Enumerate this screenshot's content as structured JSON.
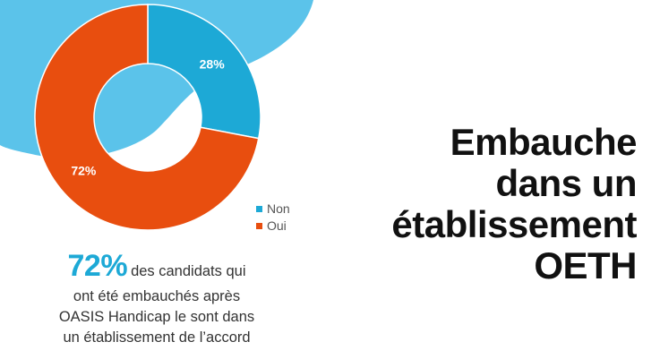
{
  "chart_data": {
    "type": "pie",
    "variant": "donut",
    "categories": [
      "Non",
      "Oui"
    ],
    "values": [
      28,
      72
    ],
    "labels": [
      "28%",
      "72%"
    ],
    "colors": [
      "#1da9d6",
      "#e84e0f"
    ],
    "legend": "right",
    "legend_items": [
      "Non",
      "Oui"
    ]
  },
  "caption": {
    "highlight": "72%",
    "line1_rest": "des candidats qui",
    "line2": "ont été embauchés après",
    "line3": "OASIS Handicap le sont dans",
    "line4": "un établissement de l’accord"
  },
  "title": {
    "line1": "Embauche",
    "line2": "dans un",
    "line3": "établissement",
    "line4": "OETH"
  },
  "colors": {
    "background_blob": "#5bc3ea",
    "caption_highlight": "#1da9d6",
    "title_text": "#111111"
  }
}
